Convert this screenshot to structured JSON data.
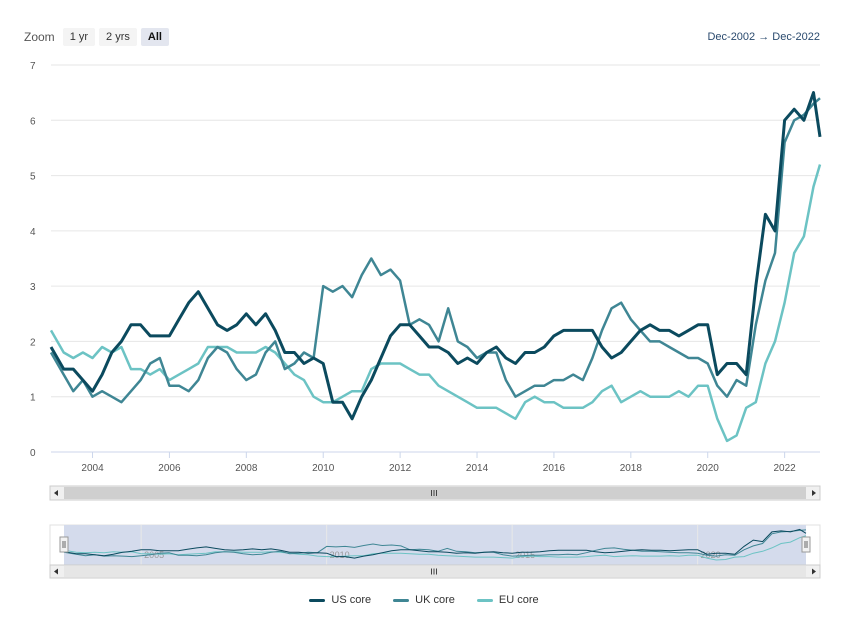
{
  "zoom": {
    "label": "Zoom",
    "buttons": [
      "1 yr",
      "2 yrs",
      "All"
    ],
    "active": "All"
  },
  "range": {
    "from": "Dec-2002",
    "arrow": "→",
    "to": "Dec-2022"
  },
  "colors": {
    "us": "#0b4a5e",
    "uk": "#3f8694",
    "eu": "#6cc3c4",
    "grid": "#e6e6e6",
    "navigator_mask": "#d4dbec"
  },
  "chart_data": {
    "type": "line",
    "title": "",
    "xlabel": "",
    "ylabel": "",
    "xlim": [
      2002.92,
      2022.92
    ],
    "ylim": [
      0,
      7
    ],
    "y_ticks": [
      "0",
      "1",
      "2",
      "3",
      "4",
      "5",
      "6",
      "7"
    ],
    "x_ticks": [
      "2004",
      "2006",
      "2008",
      "2010",
      "2012",
      "2014",
      "2016",
      "2018",
      "2020",
      "2022"
    ],
    "navigator_ticks": [
      "2005",
      "2010",
      "2015",
      "2020"
    ],
    "grid": true,
    "legend": "bottom",
    "series": [
      {
        "key": "us",
        "name": "US core",
        "x": [
          2002.92,
          2003.25,
          2003.5,
          2003.75,
          2004.0,
          2004.25,
          2004.5,
          2004.75,
          2005.0,
          2005.25,
          2005.5,
          2005.75,
          2006.0,
          2006.25,
          2006.5,
          2006.75,
          2007.0,
          2007.25,
          2007.5,
          2007.75,
          2008.0,
          2008.25,
          2008.5,
          2008.75,
          2009.0,
          2009.25,
          2009.5,
          2009.75,
          2010.0,
          2010.25,
          2010.5,
          2010.75,
          2011.0,
          2011.25,
          2011.5,
          2011.75,
          2012.0,
          2012.25,
          2012.5,
          2012.75,
          2013.0,
          2013.25,
          2013.5,
          2013.75,
          2014.0,
          2014.25,
          2014.5,
          2014.75,
          2015.0,
          2015.25,
          2015.5,
          2015.75,
          2016.0,
          2016.25,
          2016.5,
          2016.75,
          2017.0,
          2017.25,
          2017.5,
          2017.75,
          2018.0,
          2018.25,
          2018.5,
          2018.75,
          2019.0,
          2019.25,
          2019.5,
          2019.75,
          2020.0,
          2020.25,
          2020.5,
          2020.75,
          2021.0,
          2021.25,
          2021.5,
          2021.75,
          2022.0,
          2022.25,
          2022.5,
          2022.75,
          2022.92
        ],
        "values": [
          1.9,
          1.5,
          1.5,
          1.3,
          1.1,
          1.4,
          1.8,
          2.0,
          2.3,
          2.3,
          2.1,
          2.1,
          2.1,
          2.4,
          2.7,
          2.9,
          2.6,
          2.3,
          2.2,
          2.3,
          2.5,
          2.3,
          2.5,
          2.2,
          1.8,
          1.8,
          1.6,
          1.7,
          1.6,
          0.9,
          0.9,
          0.6,
          1.0,
          1.3,
          1.7,
          2.1,
          2.3,
          2.3,
          2.1,
          1.9,
          1.9,
          1.8,
          1.6,
          1.7,
          1.6,
          1.8,
          1.9,
          1.7,
          1.6,
          1.8,
          1.8,
          1.9,
          2.1,
          2.2,
          2.2,
          2.2,
          2.2,
          1.9,
          1.7,
          1.8,
          2.0,
          2.2,
          2.3,
          2.2,
          2.2,
          2.1,
          2.2,
          2.3,
          2.3,
          1.4,
          1.6,
          1.6,
          1.4,
          3.0,
          4.3,
          4.0,
          6.0,
          6.2,
          6.0,
          6.5,
          5.7
        ]
      },
      {
        "key": "uk",
        "name": "UK core",
        "x": [
          2002.92,
          2003.25,
          2003.5,
          2003.75,
          2004.0,
          2004.25,
          2004.5,
          2004.75,
          2005.0,
          2005.25,
          2005.5,
          2005.75,
          2006.0,
          2006.25,
          2006.5,
          2006.75,
          2007.0,
          2007.25,
          2007.5,
          2007.75,
          2008.0,
          2008.25,
          2008.5,
          2008.75,
          2009.0,
          2009.25,
          2009.5,
          2009.75,
          2010.0,
          2010.25,
          2010.5,
          2010.75,
          2011.0,
          2011.25,
          2011.5,
          2011.75,
          2012.0,
          2012.25,
          2012.5,
          2012.75,
          2013.0,
          2013.25,
          2013.5,
          2013.75,
          2014.0,
          2014.25,
          2014.5,
          2014.75,
          2015.0,
          2015.25,
          2015.5,
          2015.75,
          2016.0,
          2016.25,
          2016.5,
          2016.75,
          2017.0,
          2017.25,
          2017.5,
          2017.75,
          2018.0,
          2018.25,
          2018.5,
          2018.75,
          2019.0,
          2019.25,
          2019.5,
          2019.75,
          2020.0,
          2020.25,
          2020.5,
          2020.75,
          2021.0,
          2021.25,
          2021.5,
          2021.75,
          2022.0,
          2022.25,
          2022.5,
          2022.75,
          2022.92
        ],
        "values": [
          1.8,
          1.4,
          1.1,
          1.3,
          1.0,
          1.1,
          1.0,
          0.9,
          1.1,
          1.3,
          1.6,
          1.7,
          1.2,
          1.2,
          1.1,
          1.3,
          1.7,
          1.9,
          1.8,
          1.5,
          1.3,
          1.4,
          1.8,
          2.0,
          1.5,
          1.6,
          1.8,
          1.7,
          3.0,
          2.9,
          3.0,
          2.8,
          3.2,
          3.5,
          3.2,
          3.3,
          3.1,
          2.3,
          2.4,
          2.3,
          2.0,
          2.6,
          2.0,
          1.9,
          1.7,
          1.8,
          1.8,
          1.3,
          1.0,
          1.1,
          1.2,
          1.2,
          1.3,
          1.3,
          1.4,
          1.3,
          1.7,
          2.2,
          2.6,
          2.7,
          2.4,
          2.2,
          2.0,
          2.0,
          1.9,
          1.8,
          1.7,
          1.7,
          1.6,
          1.2,
          1.0,
          1.3,
          1.2,
          2.3,
          3.1,
          3.6,
          5.6,
          6.0,
          6.1,
          6.3,
          6.4
        ]
      },
      {
        "key": "eu",
        "name": "EU core",
        "x": [
          2002.92,
          2003.25,
          2003.5,
          2003.75,
          2004.0,
          2004.25,
          2004.5,
          2004.75,
          2005.0,
          2005.25,
          2005.5,
          2005.75,
          2006.0,
          2006.25,
          2006.5,
          2006.75,
          2007.0,
          2007.25,
          2007.5,
          2007.75,
          2008.0,
          2008.25,
          2008.5,
          2008.75,
          2009.0,
          2009.25,
          2009.5,
          2009.75,
          2010.0,
          2010.25,
          2010.5,
          2010.75,
          2011.0,
          2011.25,
          2011.5,
          2011.75,
          2012.0,
          2012.25,
          2012.5,
          2012.75,
          2013.0,
          2013.25,
          2013.5,
          2013.75,
          2014.0,
          2014.25,
          2014.5,
          2014.75,
          2015.0,
          2015.25,
          2015.5,
          2015.75,
          2016.0,
          2016.25,
          2016.5,
          2016.75,
          2017.0,
          2017.25,
          2017.5,
          2017.75,
          2018.0,
          2018.25,
          2018.5,
          2018.75,
          2019.0,
          2019.25,
          2019.5,
          2019.75,
          2020.0,
          2020.25,
          2020.5,
          2020.75,
          2021.0,
          2021.25,
          2021.5,
          2021.75,
          2022.0,
          2022.25,
          2022.5,
          2022.75,
          2022.92
        ],
        "values": [
          2.2,
          1.8,
          1.7,
          1.8,
          1.7,
          1.9,
          1.8,
          1.9,
          1.5,
          1.5,
          1.4,
          1.5,
          1.3,
          1.4,
          1.5,
          1.6,
          1.9,
          1.9,
          1.9,
          1.8,
          1.8,
          1.8,
          1.9,
          1.8,
          1.6,
          1.4,
          1.3,
          1.0,
          0.9,
          0.9,
          1.0,
          1.1,
          1.1,
          1.5,
          1.6,
          1.6,
          1.6,
          1.5,
          1.4,
          1.4,
          1.2,
          1.1,
          1.0,
          0.9,
          0.8,
          0.8,
          0.8,
          0.7,
          0.6,
          0.9,
          1.0,
          0.9,
          0.9,
          0.8,
          0.8,
          0.8,
          0.9,
          1.1,
          1.2,
          0.9,
          1.0,
          1.1,
          1.0,
          1.0,
          1.0,
          1.1,
          1.0,
          1.2,
          1.2,
          0.6,
          0.2,
          0.3,
          0.8,
          0.9,
          1.6,
          2.0,
          2.7,
          3.6,
          3.9,
          4.8,
          5.2
        ]
      }
    ]
  }
}
